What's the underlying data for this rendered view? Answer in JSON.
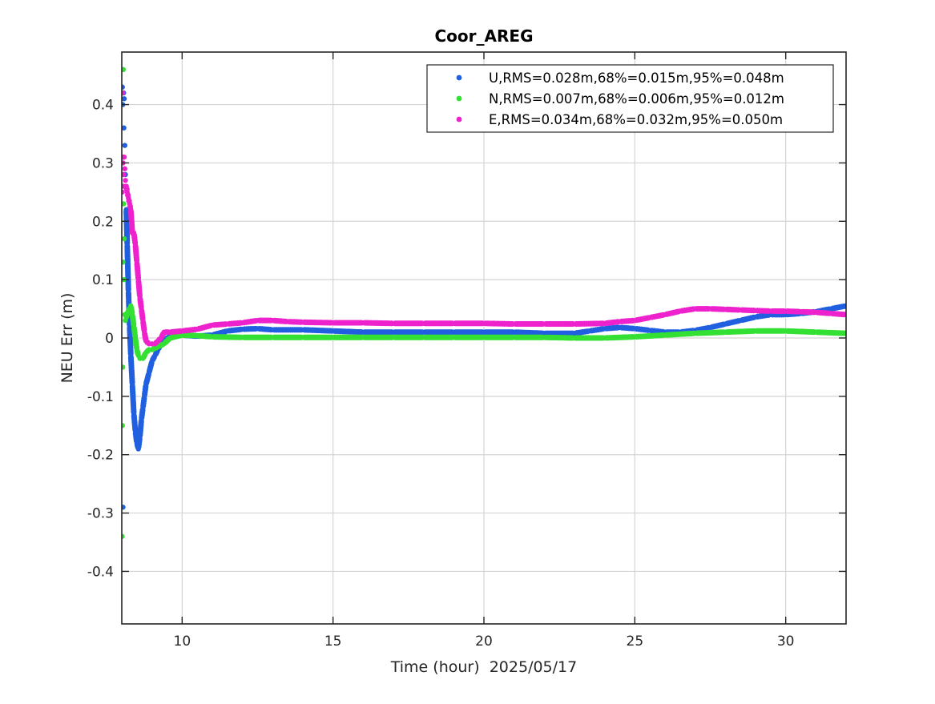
{
  "chart_data": {
    "type": "scatter",
    "title": "Coor_AREG",
    "xlabel": "Time (hour)  2025/05/17",
    "ylabel": "NEU Err (m)",
    "xlim": [
      8,
      32
    ],
    "ylim": [
      -0.49,
      0.49
    ],
    "xticks": [
      10,
      15,
      20,
      25,
      30
    ],
    "xtick_labels": [
      "10",
      "15",
      "20",
      "25",
      "30"
    ],
    "yticks": [
      -0.4,
      -0.3,
      -0.2,
      -0.1,
      0,
      0.1,
      0.2,
      0.3,
      0.4
    ],
    "ytick_labels": [
      "-0.4",
      "-0.3",
      "-0.2",
      "-0.1",
      "0",
      "0.1",
      "0.2",
      "0.3",
      "0.4"
    ],
    "grid": true,
    "legend_position": "top-right",
    "series": [
      {
        "name": "U,RMS=0.028m,68%=0.015m,95%=0.048m",
        "color": "#2060e0",
        "x": [
          8.02,
          8.03,
          8.04,
          8.05,
          8.06,
          8.07,
          8.08,
          8.1,
          8.12,
          8.15,
          8.18,
          8.22,
          8.26,
          8.3,
          8.35,
          8.4,
          8.45,
          8.5,
          8.55,
          8.6,
          8.65,
          8.7,
          8.75,
          8.8,
          8.9,
          9.0,
          9.1,
          9.2,
          9.3,
          9.5,
          9.7,
          10.0,
          10.5,
          11.0,
          11.5,
          12.0,
          12.5,
          13.0,
          14.0,
          15.0,
          16.0,
          17.0,
          18.0,
          19.0,
          20.0,
          21.0,
          22.0,
          23.0,
          23.5,
          24.0,
          24.5,
          25.0,
          25.5,
          26.0,
          26.5,
          27.0,
          27.5,
          28.0,
          28.5,
          29.0,
          29.5,
          30.0,
          30.5,
          31.0,
          31.5,
          32.0
        ],
        "y": [
          0.43,
          0.4,
          -0.29,
          0.31,
          0.42,
          0.36,
          0.41,
          0.33,
          0.28,
          0.22,
          0.16,
          0.08,
          0.02,
          -0.03,
          -0.08,
          -0.13,
          -0.16,
          -0.18,
          -0.19,
          -0.17,
          -0.14,
          -0.12,
          -0.1,
          -0.08,
          -0.06,
          -0.04,
          -0.03,
          -0.02,
          -0.01,
          0.0,
          0.005,
          0.005,
          0.003,
          0.005,
          0.012,
          0.015,
          0.016,
          0.014,
          0.014,
          0.012,
          0.01,
          0.01,
          0.01,
          0.01,
          0.01,
          0.01,
          0.008,
          0.008,
          0.012,
          0.016,
          0.018,
          0.016,
          0.013,
          0.01,
          0.01,
          0.013,
          0.018,
          0.024,
          0.03,
          0.036,
          0.04,
          0.04,
          0.042,
          0.045,
          0.05,
          0.055
        ]
      },
      {
        "name": "N,RMS=0.007m,68%=0.006m,95%=0.012m",
        "color": "#33e033",
        "x": [
          8.01,
          8.02,
          8.03,
          8.04,
          8.05,
          8.06,
          8.07,
          8.08,
          8.1,
          8.12,
          8.15,
          8.2,
          8.25,
          8.3,
          8.35,
          8.4,
          8.45,
          8.5,
          8.55,
          8.6,
          8.7,
          8.8,
          8.9,
          9.0,
          9.2,
          9.4,
          9.6,
          10.0,
          10.5,
          11.0,
          12.0,
          13.0,
          14.0,
          15.0,
          16.0,
          17.0,
          18.0,
          19.0,
          20.0,
          21.0,
          22.0,
          23.0,
          24.0,
          25.0,
          26.0,
          27.0,
          28.0,
          29.0,
          30.0,
          31.0,
          32.0
        ],
        "y": [
          -0.34,
          -0.15,
          -0.05,
          0.13,
          0.46,
          0.23,
          0.1,
          0.17,
          0.04,
          0.03,
          0.035,
          0.045,
          0.05,
          0.055,
          0.04,
          0.02,
          0.0,
          -0.02,
          -0.03,
          -0.035,
          -0.035,
          -0.025,
          -0.02,
          -0.02,
          -0.015,
          -0.01,
          0.0,
          0.005,
          0.004,
          0.002,
          0.001,
          0.001,
          0.001,
          0.001,
          0.001,
          0.001,
          0.001,
          0.001,
          0.001,
          0.001,
          0.001,
          0.0,
          0.0,
          0.002,
          0.005,
          0.008,
          0.01,
          0.012,
          0.012,
          0.01,
          0.008
        ]
      },
      {
        "name": "E,RMS=0.034m,68%=0.032m,95%=0.050m",
        "color": "#ee22cc",
        "x": [
          8.01,
          8.02,
          8.03,
          8.04,
          8.05,
          8.06,
          8.08,
          8.1,
          8.12,
          8.15,
          8.18,
          8.22,
          8.26,
          8.3,
          8.35,
          8.4,
          8.45,
          8.5,
          8.55,
          8.6,
          8.65,
          8.7,
          8.75,
          8.8,
          8.9,
          9.0,
          9.1,
          9.2,
          9.3,
          9.4,
          9.6,
          10.0,
          10.5,
          11.0,
          11.5,
          12.0,
          12.5,
          13.0,
          13.5,
          14.0,
          15.0,
          16.0,
          17.0,
          18.0,
          19.0,
          20.0,
          21.0,
          22.0,
          23.0,
          24.0,
          24.5,
          25.0,
          25.5,
          26.0,
          26.5,
          27.0,
          27.5,
          28.0,
          28.5,
          29.0,
          29.5,
          30.0,
          30.5,
          31.0,
          31.5,
          32.0
        ],
        "y": [
          0.25,
          0.31,
          0.42,
          0.3,
          0.26,
          0.28,
          0.31,
          0.29,
          0.27,
          0.26,
          0.25,
          0.24,
          0.23,
          0.22,
          0.18,
          0.18,
          0.16,
          0.13,
          0.1,
          0.07,
          0.05,
          0.03,
          0.01,
          -0.005,
          -0.01,
          -0.01,
          -0.01,
          -0.005,
          0.0,
          0.01,
          0.01,
          0.012,
          0.015,
          0.022,
          0.024,
          0.026,
          0.03,
          0.03,
          0.028,
          0.027,
          0.026,
          0.026,
          0.025,
          0.025,
          0.025,
          0.025,
          0.024,
          0.024,
          0.024,
          0.025,
          0.028,
          0.03,
          0.035,
          0.04,
          0.046,
          0.05,
          0.05,
          0.049,
          0.048,
          0.047,
          0.046,
          0.046,
          0.045,
          0.044,
          0.042,
          0.04
        ]
      }
    ]
  }
}
